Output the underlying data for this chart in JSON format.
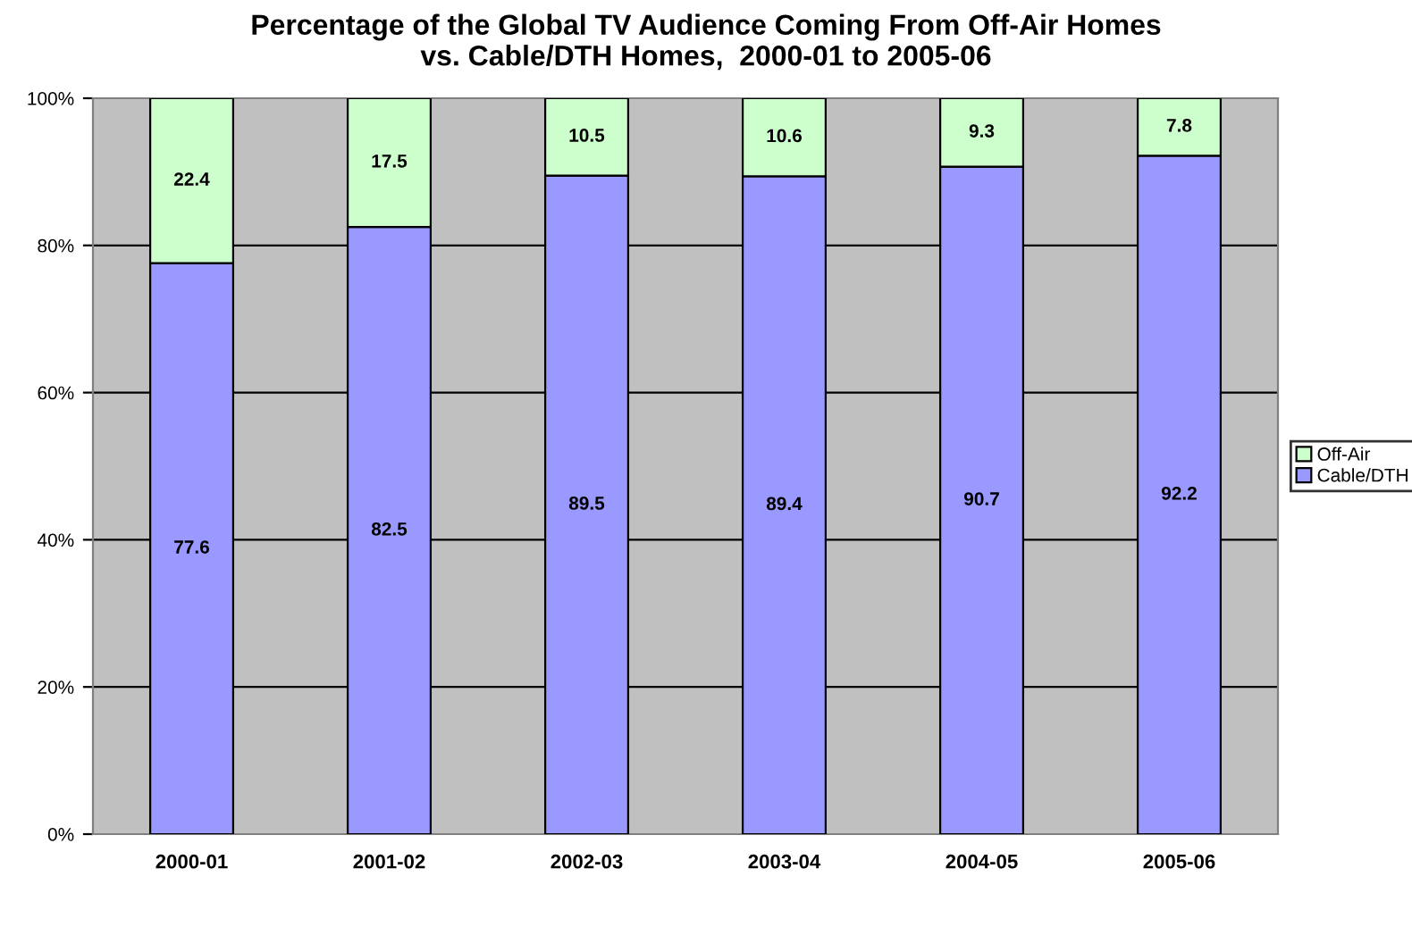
{
  "chart_data": {
    "type": "bar",
    "title": "Percentage of the Global TV Audience Coming From Off-Air Homes\nvs. Cable/DTH Homes,  2000-01 to 2005-06",
    "categories": [
      "2000-01",
      "2001-02",
      "2002-03",
      "2003-04",
      "2004-05",
      "2005-06"
    ],
    "stacked": true,
    "series": [
      {
        "name": "Cable/DTH",
        "color": "#9999ff",
        "values": [
          77.6,
          82.5,
          89.5,
          89.4,
          90.7,
          92.2
        ]
      },
      {
        "name": "Off-Air",
        "color": "#ccffcc",
        "values": [
          22.4,
          17.5,
          10.5,
          10.6,
          9.3,
          7.8
        ]
      }
    ],
    "ylim": [
      0,
      100
    ],
    "yticks": [
      {
        "value": 0,
        "label": "0%"
      },
      {
        "value": 20,
        "label": "20%"
      },
      {
        "value": 40,
        "label": "40%"
      },
      {
        "value": 60,
        "label": "60%"
      },
      {
        "value": 80,
        "label": "80%"
      },
      {
        "value": 100,
        "label": "100%"
      }
    ],
    "grid": "y",
    "legend": "right",
    "data_labels": true
  }
}
